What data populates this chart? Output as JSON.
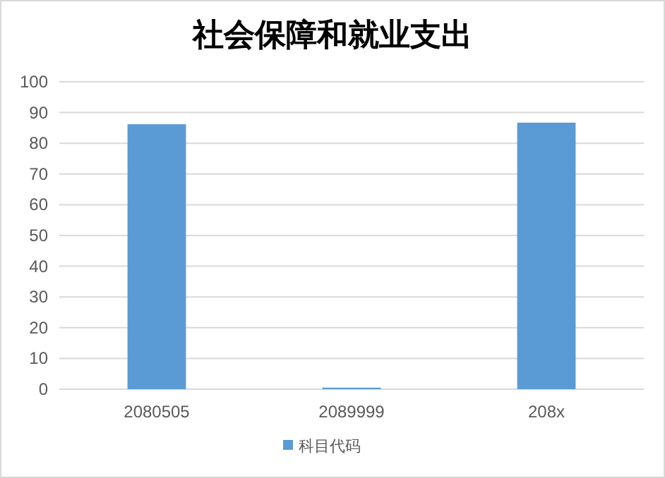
{
  "chart_data": {
    "type": "bar",
    "title": "社会保障和就业支出",
    "categories": [
      "2080505",
      "2089999",
      "208x"
    ],
    "series": [
      {
        "name": "科目代码",
        "color": "#5b9bd5",
        "values": [
          86.2,
          0.5,
          86.7
        ]
      }
    ],
    "ylim": [
      0,
      100
    ],
    "yticks": [
      0,
      10,
      20,
      30,
      40,
      50,
      60,
      70,
      80,
      90,
      100
    ],
    "grid": "y",
    "legend": "bottom"
  }
}
